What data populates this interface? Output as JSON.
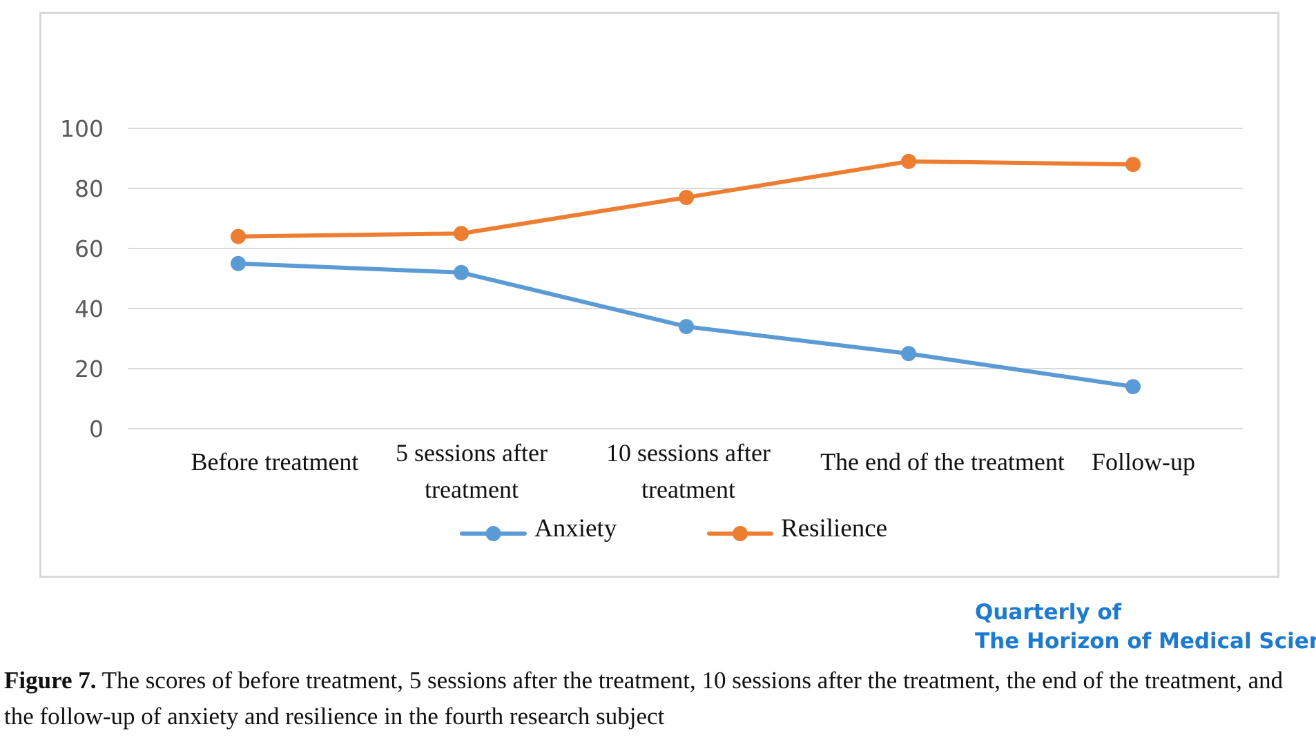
{
  "chart_data": {
    "type": "line",
    "categories": [
      [
        "Before treatment"
      ],
      [
        "5 sessions after",
        "treatment"
      ],
      [
        "10 sessions after",
        "treatment"
      ],
      [
        "The end of the treatment"
      ],
      [
        "Follow-up"
      ]
    ],
    "series": [
      {
        "name": "Anxiety",
        "values": [
          55,
          52,
          34,
          25,
          14
        ],
        "color": "#5b9bd5"
      },
      {
        "name": "Resilience",
        "values": [
          64,
          65,
          77,
          89,
          88
        ],
        "color": "#ed7d31"
      }
    ],
    "yticks": [
      0,
      20,
      40,
      60,
      80,
      100
    ],
    "ylim": [
      0,
      100
    ],
    "grid": true,
    "legend_position": "bottom"
  },
  "journal": {
    "line1": "Quarterly of",
    "line2": "The Horizon of Medical Sciences",
    "color": "#1a7ad4"
  },
  "caption": {
    "label": "Figure 7.",
    "text": " The scores of before treatment, 5 sessions after the treatment, 10 sessions after the treatment, the end of the treatment, and the follow-up of anxiety and resilience in the fourth research subject"
  }
}
